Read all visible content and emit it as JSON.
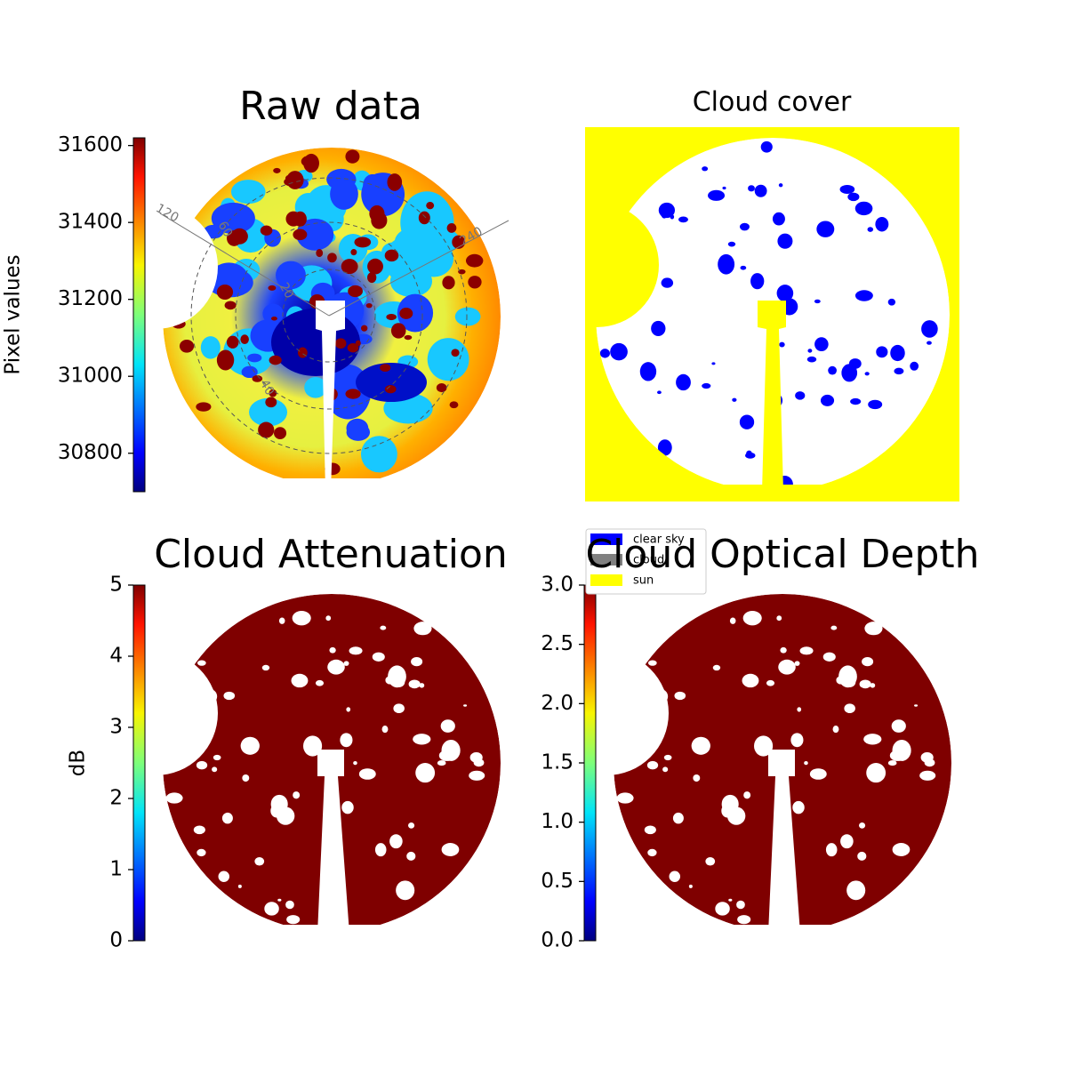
{
  "chart_data": [
    {
      "type": "image",
      "title": "Raw data",
      "colorbar": {
        "label": "Pixel values",
        "lim": [
          30700,
          31620
        ],
        "ticks": [
          30800,
          31000,
          31200,
          31400,
          31600
        ]
      },
      "annotations": [
        "120",
        "240",
        "20",
        "40",
        "60"
      ]
    },
    {
      "type": "image",
      "title": "Cloud cover",
      "legend": [
        {
          "name": "clear sky",
          "color": "#0000ff"
        },
        {
          "name": "cloud",
          "color": "#808080"
        },
        {
          "name": "sun",
          "color": "#ffff00"
        }
      ]
    },
    {
      "type": "image",
      "title": "Cloud Attenuation",
      "colorbar": {
        "label": "dB",
        "lim": [
          0,
          5
        ],
        "ticks": [
          0,
          1,
          2,
          3,
          4,
          5
        ]
      }
    },
    {
      "type": "image",
      "title": "Cloud Optical Depth",
      "colorbar": {
        "lim": [
          0,
          3
        ],
        "ticks": [
          {
            "value": 0,
            "label": "0.0"
          },
          0.5,
          {
            "value": 1,
            "label": "1.0"
          },
          1.5,
          {
            "value": 2,
            "label": "2.0"
          },
          2.5,
          {
            "value": 3,
            "label": "3.0"
          }
        ]
      }
    }
  ]
}
